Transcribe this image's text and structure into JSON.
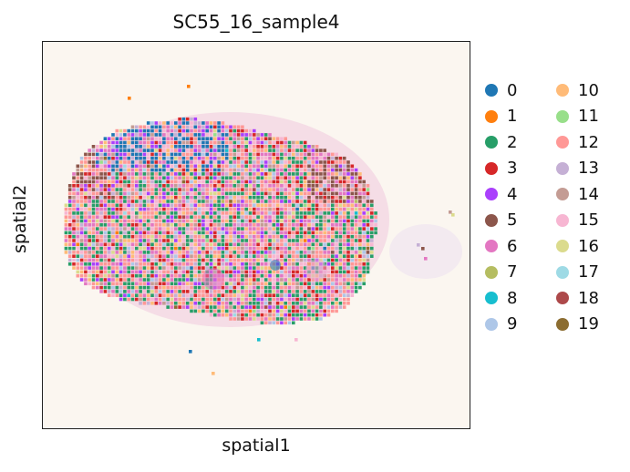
{
  "chart_data": {
    "type": "scatter",
    "title": "SC55_16_sample4",
    "xlabel": "spatial1",
    "ylabel": "spatial2",
    "legend_placement": "right",
    "legend_columns": 2,
    "categories": [
      {
        "label": "0",
        "color": "#1f77b4"
      },
      {
        "label": "1",
        "color": "#ff7f0e"
      },
      {
        "label": "2",
        "color": "#279e68"
      },
      {
        "label": "3",
        "color": "#d62728"
      },
      {
        "label": "4",
        "color": "#aa40fc"
      },
      {
        "label": "5",
        "color": "#8c564b"
      },
      {
        "label": "6",
        "color": "#e377c2"
      },
      {
        "label": "7",
        "color": "#b5bd61"
      },
      {
        "label": "8",
        "color": "#17becf"
      },
      {
        "label": "9",
        "color": "#aec7e8"
      },
      {
        "label": "10",
        "color": "#ffbb78"
      },
      {
        "label": "11",
        "color": "#98df8a"
      },
      {
        "label": "12",
        "color": "#ff9896"
      },
      {
        "label": "13",
        "color": "#c5b0d5"
      },
      {
        "label": "14",
        "color": "#c49c94"
      },
      {
        "label": "15",
        "color": "#f7b6d2"
      },
      {
        "label": "16",
        "color": "#dbdb8d"
      },
      {
        "label": "17",
        "color": "#9edae5"
      },
      {
        "label": "18",
        "color": "#ad494a"
      },
      {
        "label": "19",
        "color": "#8c6d31"
      }
    ],
    "grid": false,
    "ticks": false
  }
}
